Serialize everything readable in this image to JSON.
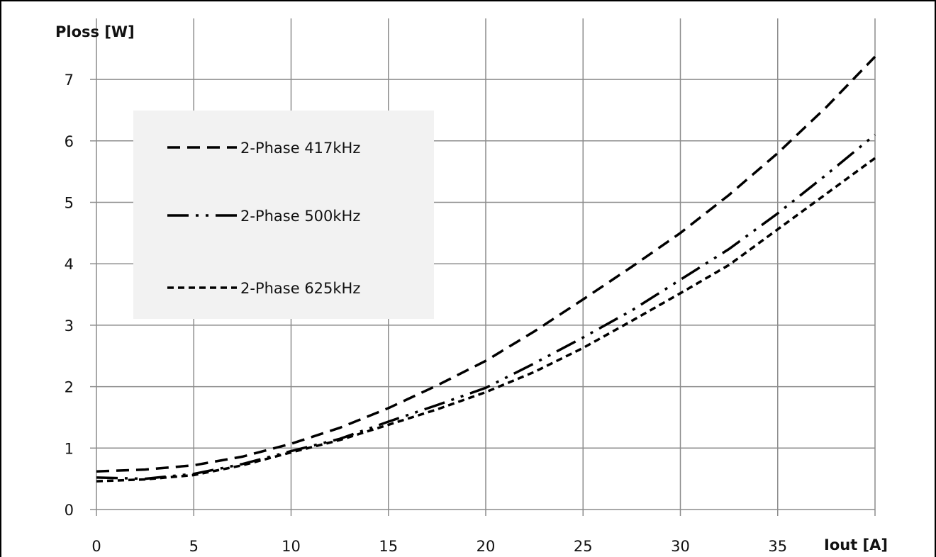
{
  "chart_data": {
    "type": "line",
    "title": "",
    "xlabel": "Iout [A]",
    "ylabel": "Ploss [W]",
    "xlim": [
      0,
      40
    ],
    "ylim": [
      0,
      8
    ],
    "x_ticks": [
      "0",
      "5",
      "10",
      "15",
      "20",
      "25",
      "30",
      "35"
    ],
    "y_ticks": [
      "0",
      "1",
      "2",
      "3",
      "4",
      "5",
      "6",
      "7"
    ],
    "grid": true,
    "legend_position": "upper-left",
    "series": [
      {
        "name": "2-Phase 417kHz",
        "line_style": "dashed",
        "color": "#000000",
        "x": [
          0,
          2.5,
          5,
          7.5,
          10,
          12.5,
          15,
          17.5,
          20,
          22.5,
          25,
          27.5,
          30,
          32.5,
          35,
          37.5,
          40
        ],
        "y": [
          0.62,
          0.65,
          0.72,
          0.86,
          1.07,
          1.33,
          1.65,
          2.02,
          2.42,
          2.9,
          3.42,
          3.95,
          4.5,
          5.12,
          5.8,
          6.55,
          7.37
        ]
      },
      {
        "name": "2-Phase 500kHz",
        "line_style": "dash-dot-dot",
        "color": "#000000",
        "x": [
          0,
          2.5,
          5,
          7.5,
          10,
          12.5,
          15,
          17.5,
          20,
          22.5,
          25,
          27.5,
          30,
          32.5,
          35,
          37.5,
          40
        ],
        "y": [
          0.52,
          0.5,
          0.58,
          0.74,
          0.95,
          1.15,
          1.43,
          1.7,
          1.98,
          2.38,
          2.8,
          3.24,
          3.74,
          4.24,
          4.82,
          5.45,
          6.1
        ]
      },
      {
        "name": "2-Phase 625kHz",
        "line_style": "short-dashed",
        "color": "#000000",
        "x": [
          0,
          2.5,
          5,
          7.5,
          10,
          12.5,
          15,
          17.5,
          20,
          22.5,
          25,
          27.5,
          30,
          32.5,
          35,
          37.5,
          40
        ],
        "y": [
          0.46,
          0.49,
          0.56,
          0.72,
          0.93,
          1.13,
          1.38,
          1.63,
          1.91,
          2.24,
          2.63,
          3.07,
          3.52,
          3.98,
          4.56,
          5.14,
          5.72
        ]
      }
    ]
  }
}
